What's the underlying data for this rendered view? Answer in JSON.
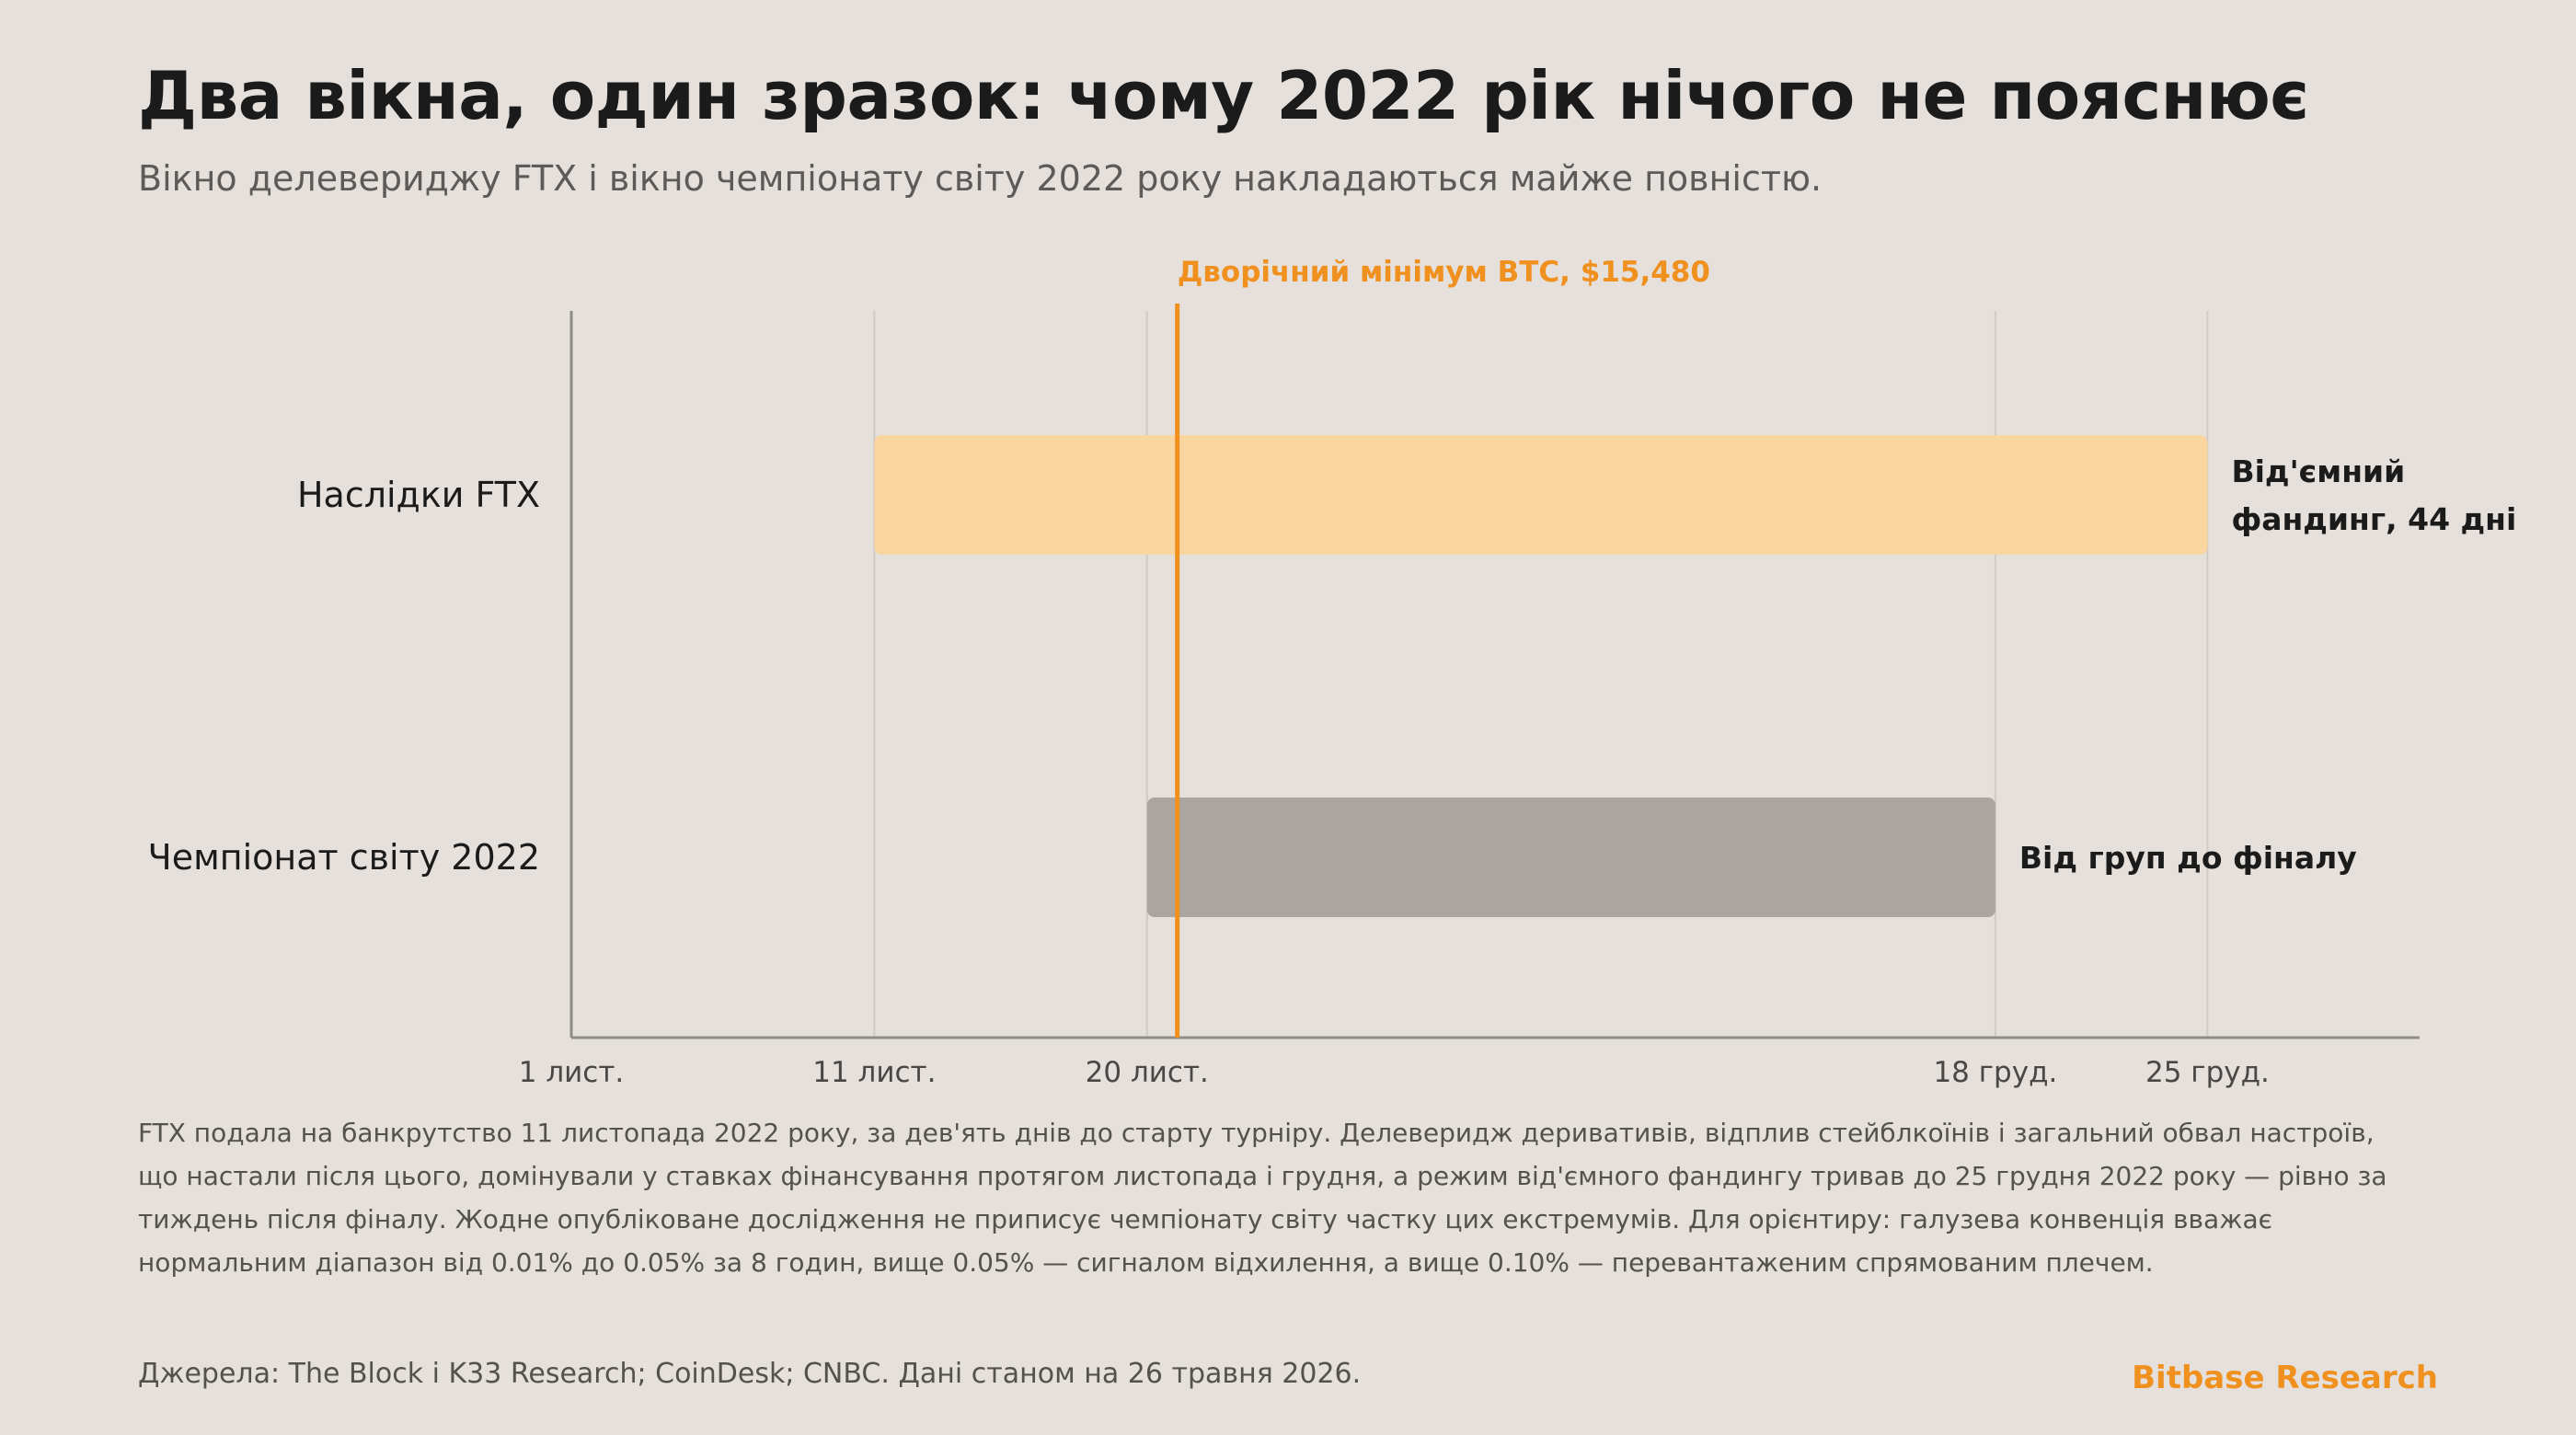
{
  "title": "Два вікна, один зразок: чому 2022 рік нічого не пояснює",
  "subtitle": "Вікно делевериджу FTX і вікно чемпіонату світу 2022 року накладаються майже повністю.",
  "chart_data": {
    "type": "timeline",
    "x_ticks": [
      {
        "date": "2022-11-01",
        "label": "1 лист."
      },
      {
        "date": "2022-11-11",
        "label": "11 лист."
      },
      {
        "date": "2022-11-20",
        "label": "20 лист."
      },
      {
        "date": "2022-12-18",
        "label": "18 груд."
      },
      {
        "date": "2022-12-25",
        "label": "25 груд."
      }
    ],
    "x_range": [
      "2022-11-01",
      "2023-01-01"
    ],
    "grid": true,
    "rows": [
      {
        "label": "Наслідки FTX",
        "start": "2022-11-11",
        "end": "2022-12-25",
        "annotation": [
          "Від'ємний",
          "фандинг, 44 дні"
        ],
        "color": "#f9d59f"
      },
      {
        "label": "Чемпіонат світу 2022",
        "start": "2022-11-20",
        "end": "2022-12-18",
        "annotation": [
          "Від груп до фіналу"
        ],
        "color": "#aaa59f"
      }
    ],
    "marker": {
      "date": "2022-11-21",
      "label": "Дворічний мінімум BTC, $15,480",
      "color": "#f0901e"
    }
  },
  "footnote": "FTX подала на банкрутство 11 листопада 2022 року, за дев'ять днів до старту турніру. Делеверидж деривативів, відплив стейблкоїнів і загальний обвал настроїв, що настали після цього, домінували у ставках фінансування протягом листопада і грудня, а режим від'ємного фандингу тривав до 25 грудня 2022 року — рівно за тиждень після фіналу. Жодне опубліковане дослідження не приписує чемпіонату світу частку цих екстремумів. Для орієнтиру: галузева конвенція вважає нормальним діапазон від 0.01% до 0.05% за 8 годин, вище 0.05% — сигналом відхилення, а вище 0.10% — перевантаженим спрямованим плечем.",
  "sources": "Джерела: The Block і K33 Research; CoinDesk; CNBC. Дані станом на 26 травня 2026.",
  "brand": "Bitbase Research"
}
